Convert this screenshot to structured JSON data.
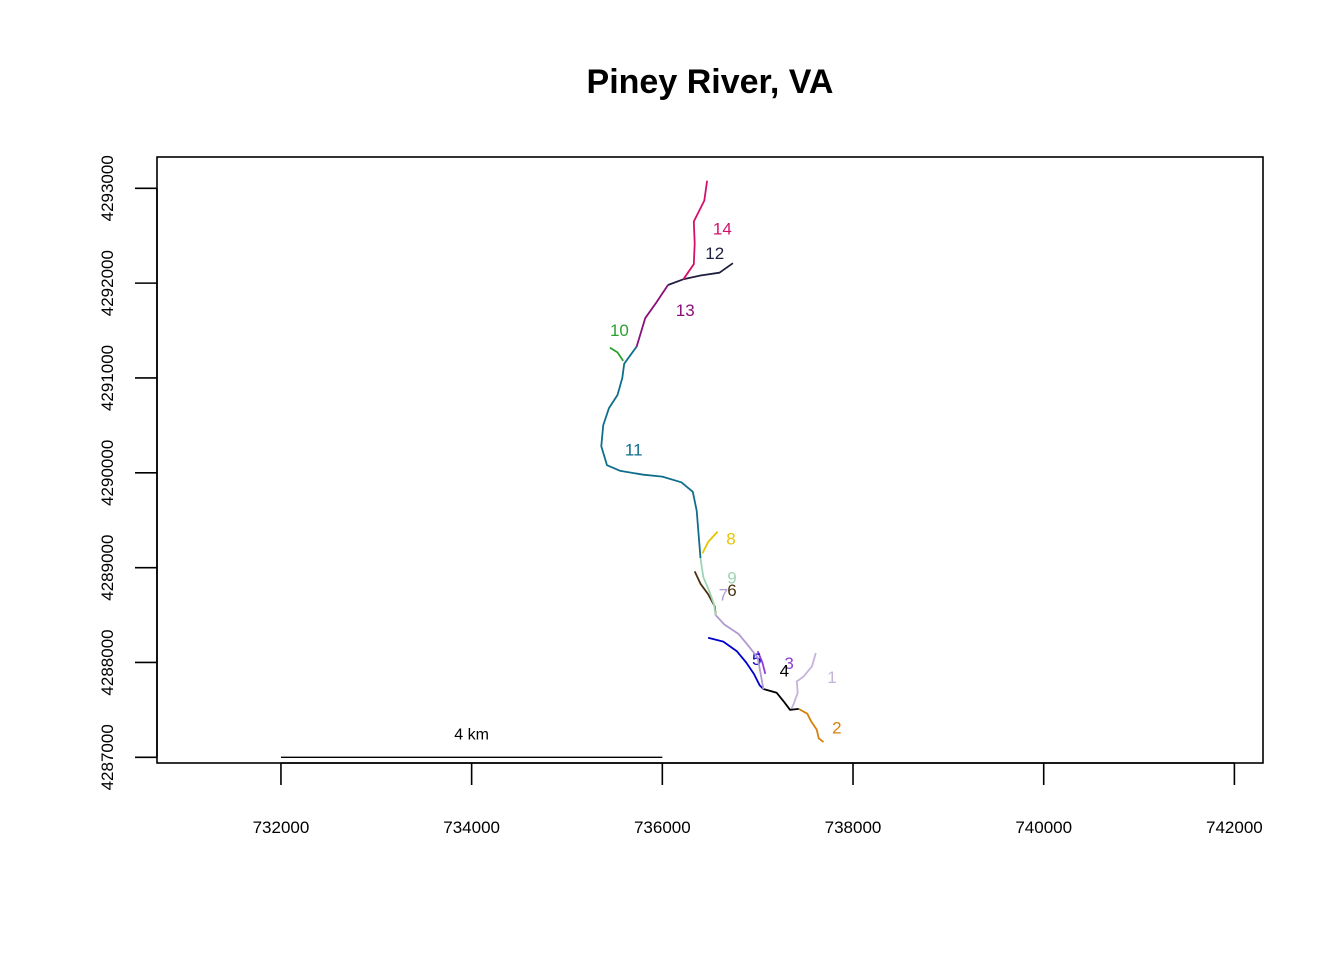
{
  "title": "Piney River, VA",
  "map": {
    "x_range": [
      730700,
      742300
    ],
    "y_range": [
      4286940,
      4293330
    ],
    "x_ticks": [
      732000,
      734000,
      736000,
      738000,
      740000,
      742000
    ],
    "y_ticks": [
      4287000,
      4288000,
      4289000,
      4290000,
      4291000,
      4292000,
      4293000
    ],
    "x_tick_labels": [
      "732000",
      "734000",
      "736000",
      "738000",
      "740000",
      "742000"
    ],
    "y_tick_labels": [
      "4287000",
      "4288000",
      "4289000",
      "4290000",
      "4291000",
      "4292000",
      "4293000"
    ]
  },
  "scale_bar": {
    "label": "4 km",
    "x_start": 732000,
    "x_end": 736000,
    "y": 4287000
  },
  "segments": [
    {
      "id": "1",
      "label": "1",
      "color": "#c4b4dc",
      "label_at": [
        737780,
        4287830
      ],
      "points": [
        [
          737610,
          4288100
        ],
        [
          737570,
          4287960
        ],
        [
          737480,
          4287850
        ],
        [
          737410,
          4287800
        ],
        [
          737420,
          4287680
        ],
        [
          737380,
          4287570
        ],
        [
          737350,
          4287500
        ]
      ]
    },
    {
      "id": "2",
      "label": "2",
      "color": "#d4820c",
      "label_at": [
        737830,
        4287300
      ],
      "points": [
        [
          737430,
          4287510
        ],
        [
          737520,
          4287460
        ],
        [
          737560,
          4287380
        ],
        [
          737620,
          4287290
        ],
        [
          737640,
          4287200
        ],
        [
          737690,
          4287160
        ]
      ]
    },
    {
      "id": "3",
      "label": "3",
      "color": "#8f3fd6",
      "label_at": [
        737330,
        4287980
      ],
      "points": [
        [
          737000,
          4288120
        ],
        [
          737050,
          4288000
        ],
        [
          737080,
          4287880
        ]
      ]
    },
    {
      "id": "4",
      "label": "4",
      "color": "#000000",
      "label_at": [
        737280,
        4287900
      ],
      "points": [
        [
          737060,
          4287720
        ],
        [
          737200,
          4287680
        ],
        [
          737280,
          4287580
        ],
        [
          737340,
          4287500
        ],
        [
          737430,
          4287510
        ]
      ]
    },
    {
      "id": "5",
      "label": "5",
      "color": "#0000cc",
      "label_at": [
        736990,
        4288020
      ],
      "points": [
        [
          736480,
          4288260
        ],
        [
          736640,
          4288220
        ],
        [
          736780,
          4288120
        ],
        [
          736880,
          4288000
        ],
        [
          736960,
          4287880
        ],
        [
          737020,
          4287760
        ],
        [
          737060,
          4287720
        ]
      ]
    },
    {
      "id": "6",
      "label": "6",
      "color": "#4a3310",
      "label_at": [
        736730,
        4288750
      ],
      "points": [
        [
          736340,
          4288960
        ],
        [
          736400,
          4288830
        ],
        [
          736480,
          4288720
        ],
        [
          736550,
          4288590
        ],
        [
          736560,
          4288500
        ]
      ]
    },
    {
      "id": "7",
      "label": "7",
      "color": "#b09ad0",
      "label_at": [
        736640,
        4288700
      ],
      "points": [
        [
          736560,
          4288500
        ],
        [
          736650,
          4288400
        ],
        [
          736800,
          4288300
        ],
        [
          736900,
          4288180
        ],
        [
          737000,
          4288050
        ],
        [
          737060,
          4287720
        ]
      ]
    },
    {
      "id": "8",
      "label": "8",
      "color": "#e6c400",
      "label_at": [
        736720,
        4289290
      ],
      "points": [
        [
          736580,
          4289380
        ],
        [
          736480,
          4289270
        ],
        [
          736420,
          4289150
        ]
      ]
    },
    {
      "id": "9",
      "label": "9",
      "color": "#9ed4b4",
      "label_at": [
        736730,
        4288880
      ],
      "points": [
        [
          736400,
          4289100
        ],
        [
          736430,
          4288900
        ],
        [
          736490,
          4288760
        ],
        [
          736540,
          4288620
        ],
        [
          736560,
          4288500
        ]
      ]
    },
    {
      "id": "10",
      "label": "10",
      "color": "#2ca02c",
      "label_at": [
        735550,
        4291490
      ],
      "points": [
        [
          735450,
          4291320
        ],
        [
          735530,
          4291270
        ],
        [
          735590,
          4291180
        ]
      ]
    },
    {
      "id": "11",
      "label": "11",
      "color": "#0e6e8c",
      "label_at": [
        735700,
        4290230
      ],
      "points": [
        [
          735730,
          4291330
        ],
        [
          735600,
          4291150
        ],
        [
          735580,
          4291000
        ],
        [
          735530,
          4290820
        ],
        [
          735440,
          4290680
        ],
        [
          735380,
          4290500
        ],
        [
          735360,
          4290280
        ],
        [
          735420,
          4290080
        ],
        [
          735560,
          4290020
        ],
        [
          735800,
          4289980
        ],
        [
          736000,
          4289960
        ],
        [
          736200,
          4289900
        ],
        [
          736320,
          4289800
        ],
        [
          736360,
          4289600
        ],
        [
          736380,
          4289350
        ],
        [
          736400,
          4289100
        ]
      ]
    },
    {
      "id": "12",
      "label": "12",
      "color": "#1f1f3f",
      "label_at": [
        736550,
        4292300
      ],
      "points": [
        [
          736740,
          4292210
        ],
        [
          736600,
          4292110
        ],
        [
          736400,
          4292080
        ],
        [
          736220,
          4292040
        ],
        [
          736060,
          4291980
        ]
      ]
    },
    {
      "id": "13",
      "label": "13",
      "color": "#8b0f7a",
      "label_at": [
        736240,
        4291700
      ],
      "points": [
        [
          736060,
          4291980
        ],
        [
          735940,
          4291800
        ],
        [
          735820,
          4291630
        ],
        [
          735730,
          4291330
        ]
      ]
    },
    {
      "id": "14",
      "label": "14",
      "color": "#d6106a",
      "label_at": [
        736630,
        4292560
      ],
      "points": [
        [
          736470,
          4293080
        ],
        [
          736440,
          4292870
        ],
        [
          736330,
          4292650
        ],
        [
          736340,
          4292420
        ],
        [
          736330,
          4292200
        ],
        [
          736220,
          4292040
        ]
      ]
    }
  ]
}
